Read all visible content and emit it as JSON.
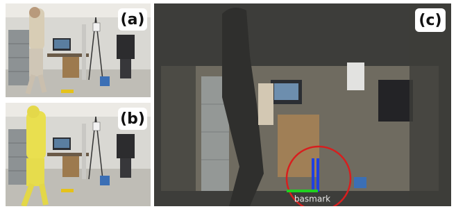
{
  "panels": [
    {
      "label": "(a)"
    },
    {
      "label": "(b)"
    },
    {
      "label": "(c)",
      "annotation": "basmark"
    }
  ]
}
